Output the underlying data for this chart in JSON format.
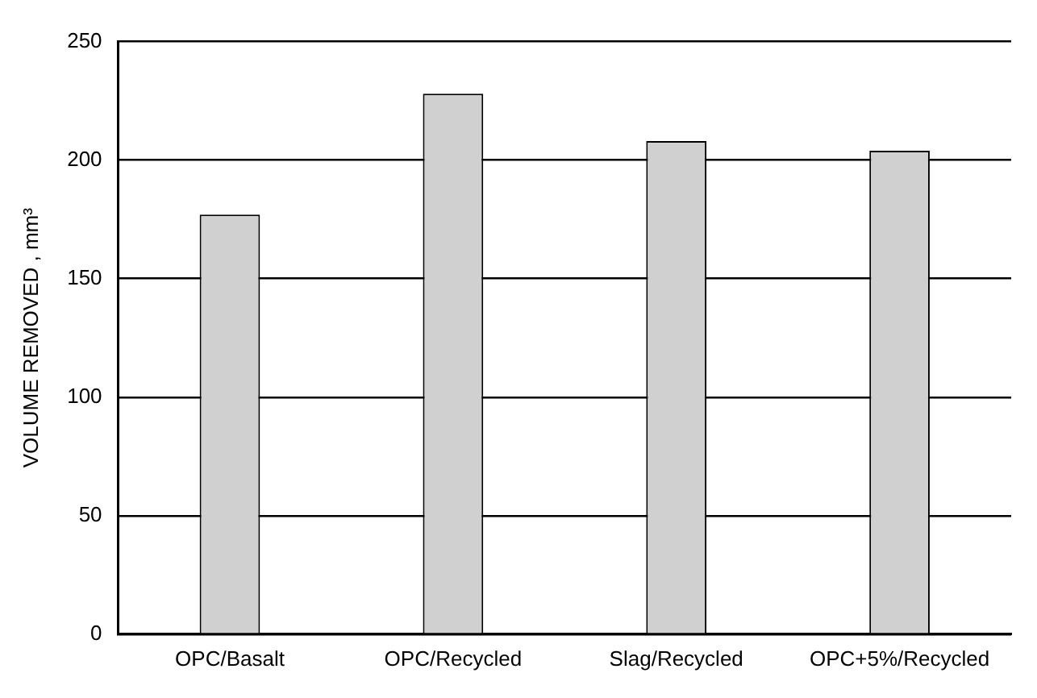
{
  "chart_data": {
    "type": "bar",
    "ylabel": "VOLUME REMOVED , mm³",
    "categories": [
      "OPC/Basalt",
      "OPC/Recycled",
      "Slag/Recycled",
      "OPC+5%/Recycled"
    ],
    "values": [
      177,
      228,
      208,
      204
    ],
    "color": "#d0d0d0",
    "ylim": [
      0,
      250
    ],
    "yticks": [
      0,
      50,
      100,
      150,
      200,
      250
    ],
    "grid": "y",
    "legend": false
  }
}
